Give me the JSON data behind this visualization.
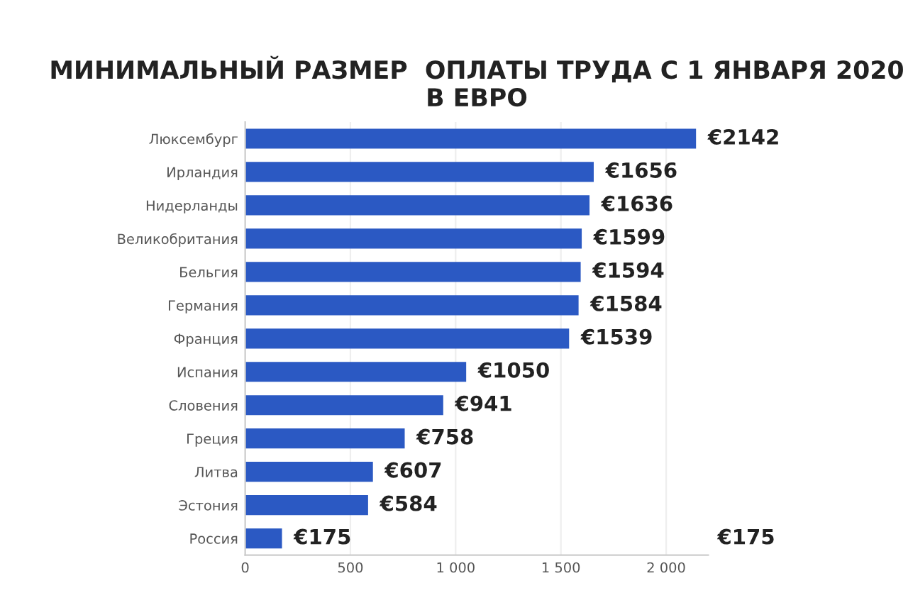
{
  "chart_data": {
    "type": "bar",
    "orientation": "horizontal",
    "title": "МИНИМАЛЬНЫЙ РАЗМЕР  ОПЛАТЫ ТРУДА С 1 ЯНВАРЯ 2020\nВ ЕВРО",
    "categories": [
      "Люксембург",
      "Ирландия",
      "Нидерланды",
      "Великобритания",
      "Бельгия",
      "Германия",
      "Франция",
      "Испания",
      "Словения",
      "Греция",
      "Литва",
      "Эстония",
      "Россия"
    ],
    "values": [
      2142,
      1656,
      1636,
      1599,
      1594,
      1584,
      1539,
      1050,
      941,
      758,
      607,
      584,
      175
    ],
    "value_labels": [
      "€2142",
      "€1656",
      "€1636",
      "€1599",
      "€1594",
      "€1584",
      "€1539",
      "€1050",
      "€941",
      "€758",
      "€607",
      "€584",
      "€175"
    ],
    "color": "#2b59c3",
    "xlim": [
      0,
      2200
    ],
    "xticks": [
      0,
      500,
      {
        "value": 1000,
        "label": "1 000"
      },
      {
        "value": 1500,
        "label": "1 500"
      },
      {
        "value": 2000,
        "label": "2 000"
      }
    ],
    "annotations": [
      "€175"
    ],
    "grid": "x"
  }
}
